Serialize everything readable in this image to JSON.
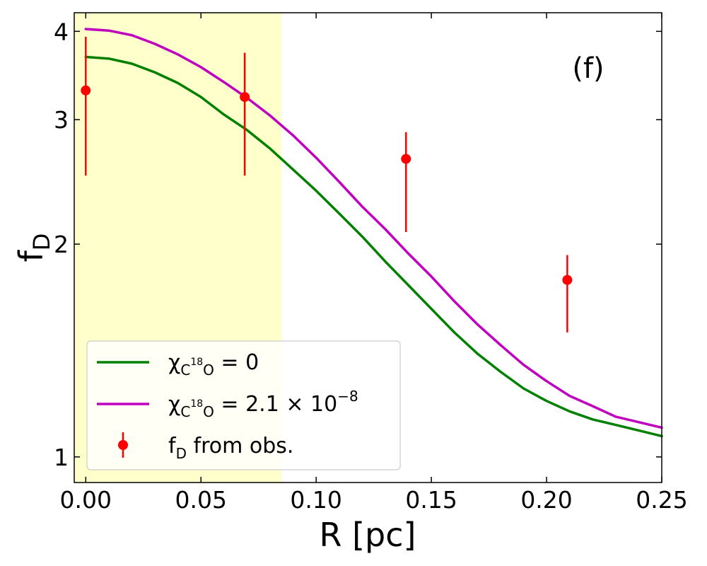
{
  "chart_data": {
    "type": "line",
    "panel_label": "(f)",
    "xlabel": "R [pc]",
    "ylabel": {
      "main": "f",
      "sub": "D"
    },
    "xlim": [
      -0.005,
      0.25
    ],
    "ylim": [
      0.92,
      4.25
    ],
    "yscale": "log",
    "xticks": [
      0.0,
      0.05,
      0.1,
      0.15,
      0.2,
      0.25
    ],
    "xtick_labels": [
      "0.00",
      "0.05",
      "0.10",
      "0.15",
      "0.20",
      "0.25"
    ],
    "yticks": [
      1,
      2,
      3,
      4
    ],
    "ytick_labels": [
      "1",
      "2",
      "3",
      "4"
    ],
    "shaded_region": {
      "x_range": [
        -0.005,
        0.085
      ],
      "color": "#ffffcc"
    },
    "series": [
      {
        "name": "chi_C18O = 0",
        "kind": "line",
        "color": "#008000",
        "x": [
          0.0,
          0.01,
          0.02,
          0.03,
          0.04,
          0.05,
          0.06,
          0.07,
          0.08,
          0.09,
          0.1,
          0.11,
          0.12,
          0.13,
          0.14,
          0.15,
          0.16,
          0.17,
          0.18,
          0.19,
          0.2,
          0.21,
          0.22,
          0.23,
          0.24,
          0.25
        ],
        "values": [
          3.68,
          3.66,
          3.6,
          3.5,
          3.38,
          3.23,
          3.05,
          2.9,
          2.73,
          2.55,
          2.38,
          2.21,
          2.05,
          1.89,
          1.75,
          1.62,
          1.5,
          1.4,
          1.32,
          1.25,
          1.2,
          1.16,
          1.13,
          1.11,
          1.09,
          1.07
        ]
      },
      {
        "name": "chi_C18O = 2.1e-8",
        "kind": "line",
        "color": "#bf00bf",
        "x": [
          0.0,
          0.01,
          0.02,
          0.03,
          0.04,
          0.05,
          0.06,
          0.07,
          0.08,
          0.09,
          0.1,
          0.11,
          0.12,
          0.13,
          0.14,
          0.15,
          0.16,
          0.17,
          0.18,
          0.19,
          0.2,
          0.21,
          0.22,
          0.23,
          0.24,
          0.25
        ],
        "values": [
          4.03,
          4.01,
          3.95,
          3.84,
          3.71,
          3.56,
          3.39,
          3.22,
          3.04,
          2.85,
          2.65,
          2.45,
          2.26,
          2.1,
          1.94,
          1.8,
          1.66,
          1.54,
          1.44,
          1.35,
          1.28,
          1.22,
          1.18,
          1.14,
          1.12,
          1.1
        ]
      },
      {
        "name": "fD from obs.",
        "kind": "errorbar",
        "color": "#ff0000",
        "x": [
          0.0,
          0.069,
          0.139,
          0.209
        ],
        "values": [
          3.3,
          3.23,
          2.64,
          1.78
        ],
        "lower": [
          2.5,
          2.5,
          2.08,
          1.5
        ],
        "upper": [
          3.93,
          3.73,
          2.88,
          1.93
        ]
      }
    ],
    "legend": {
      "position": "lower-left",
      "entries": [
        {
          "base": "χ",
          "sub": "C",
          "sup": "18",
          "sub2": "O",
          "eq": " = 0"
        },
        {
          "base": "χ",
          "sub": "C",
          "sup": "18",
          "sub2": "O",
          "eq": " = 2.1 × 10",
          "exp": "−8"
        },
        {
          "base": "f",
          "sub": "D",
          "eq": " from obs."
        }
      ]
    }
  }
}
